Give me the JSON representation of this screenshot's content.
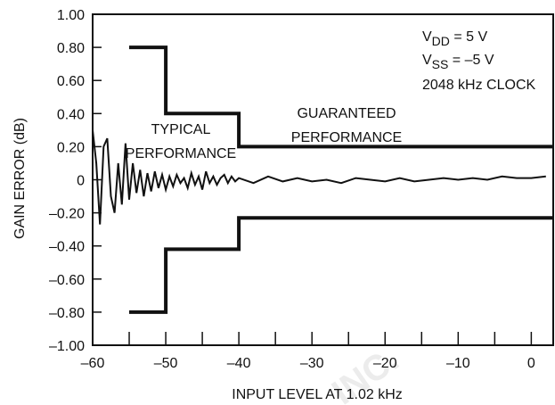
{
  "chart_data": {
    "type": "line",
    "xlabel": "INPUT LEVEL AT 1.02 kHz",
    "ylabel": "GAIN ERROR (dB)",
    "xlim": [
      -60,
      3
    ],
    "ylim": [
      -1.0,
      1.0
    ],
    "x_ticks": [
      -60,
      -50,
      -40,
      -30,
      -20,
      -10,
      0
    ],
    "x_tick_labels": [
      "–60",
      "–50",
      "–40",
      "–30",
      "–20",
      "–10",
      "0"
    ],
    "y_ticks": [
      1.0,
      0.8,
      0.6,
      0.4,
      0.2,
      0,
      -0.2,
      -0.4,
      -0.6,
      -0.8,
      -1.0
    ],
    "y_tick_labels": [
      "1.00",
      "0.80",
      "0.60",
      "0.40",
      "0.20",
      "0",
      "–0.20",
      "–0.40",
      "–0.60",
      "–0.80",
      "–1.00"
    ],
    "grid": false,
    "series": [
      {
        "role": "upper-limit",
        "x": [
          -55,
          -50,
          -50,
          -40,
          -40,
          3
        ],
        "y": [
          0.8,
          0.8,
          0.4,
          0.4,
          0.2,
          0.2
        ]
      },
      {
        "role": "lower-limit",
        "x": [
          -55,
          -50,
          -50,
          -40,
          -40,
          3
        ],
        "y": [
          -0.8,
          -0.8,
          -0.42,
          -0.42,
          -0.23,
          -0.23
        ]
      },
      {
        "role": "typical",
        "x": [
          -60,
          -59.5,
          -59,
          -58.5,
          -58,
          -57.5,
          -57,
          -56.5,
          -56,
          -55.5,
          -55,
          -54.5,
          -54,
          -53.5,
          -53,
          -52.5,
          -52,
          -51.5,
          -51,
          -50.5,
          -50,
          -49.5,
          -49,
          -48.5,
          -48,
          -47.5,
          -47,
          -46.5,
          -46,
          -45.5,
          -45,
          -44.5,
          -44,
          -43.5,
          -43,
          -42.5,
          -42,
          -41.5,
          -41,
          -40.5,
          -40,
          -38,
          -36,
          -34,
          -32,
          -30,
          -28,
          -26,
          -24,
          -22,
          -20,
          -18,
          -16,
          -14,
          -12,
          -10,
          -8,
          -6,
          -4,
          -2,
          0,
          2
        ],
        "y": [
          0.3,
          0.1,
          -0.27,
          0.2,
          0.25,
          -0.1,
          -0.2,
          0.1,
          -0.15,
          0.22,
          -0.12,
          0.1,
          -0.08,
          0.06,
          -0.1,
          0.04,
          -0.07,
          0.05,
          -0.05,
          0.03,
          -0.06,
          0.02,
          -0.04,
          0.03,
          -0.02,
          0.01,
          -0.05,
          0.04,
          -0.03,
          0.02,
          -0.06,
          0.05,
          -0.02,
          0.02,
          -0.03,
          0.01,
          0.03,
          -0.02,
          0.02,
          -0.01,
          0.01,
          -0.02,
          0.02,
          -0.01,
          0.01,
          -0.01,
          0.0,
          -0.02,
          0.01,
          0.0,
          -0.01,
          0.01,
          -0.01,
          0.0,
          0.01,
          0.0,
          0.01,
          0.0,
          0.02,
          0.01,
          0.01,
          0.02
        ]
      }
    ],
    "annotations": {
      "typical_l1": "TYPICAL",
      "typical_l2": "PERFORMANCE",
      "guaranteed_l1": "GUARANTEED",
      "guaranteed_l2": "PERFORMANCE",
      "vdd_main": "V",
      "vdd_sub": "DD",
      "vdd_value": " = 5 V",
      "vss_main": "V",
      "vss_sub": "SS",
      "vss_value": " = –5 V",
      "clock": "2048 kHz CLOCK"
    },
    "watermark": "INC."
  }
}
